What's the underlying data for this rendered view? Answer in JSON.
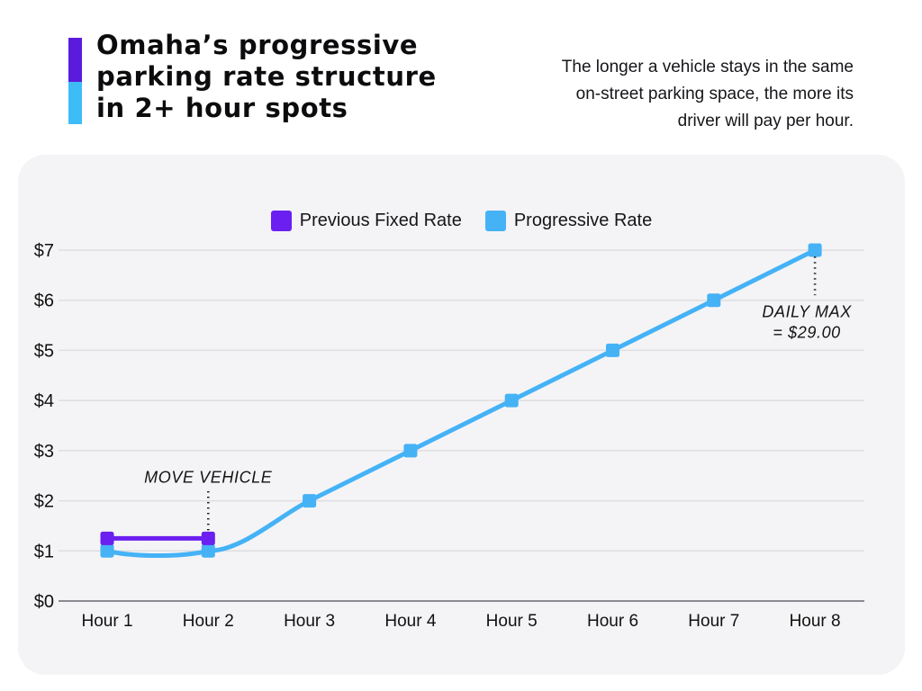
{
  "header": {
    "title_lines": [
      "Omaha’s progressive",
      "parking rate structure",
      "in 2+ hour spots"
    ],
    "subtitle_lines": [
      "The longer a vehicle stays in the same",
      "on-street parking space, the more its",
      "driver will pay per hour."
    ],
    "accent_colors": {
      "top": "#5A1BDE",
      "bottom": "#3EBCF7"
    }
  },
  "legend": [
    {
      "label": "Previous Fixed Rate",
      "color": "#6B1FF0"
    },
    {
      "label": "Progressive Rate",
      "color": "#45B2F6"
    }
  ],
  "chart_data": {
    "type": "line",
    "categories": [
      "Hour 1",
      "Hour 2",
      "Hour 3",
      "Hour 4",
      "Hour 5",
      "Hour 6",
      "Hour 7",
      "Hour 8"
    ],
    "yticks": [
      "$0",
      "$1",
      "$2",
      "$3",
      "$4",
      "$5",
      "$6",
      "$7"
    ],
    "ylim": [
      0,
      7
    ],
    "grid": "horizontal",
    "legend_position": "top-center",
    "series": [
      {
        "name": "Progressive Rate",
        "color": "#45B2F6",
        "curved": true,
        "hours": [
          1,
          2,
          3,
          4,
          5,
          6,
          7,
          8
        ],
        "values": [
          1,
          1,
          2,
          3,
          4,
          5,
          6,
          7
        ]
      },
      {
        "name": "Previous Fixed Rate",
        "color": "#6B1FF0",
        "curved": false,
        "hours": [
          1,
          2
        ],
        "values": [
          1.25,
          1.25
        ]
      }
    ],
    "annotations": [
      {
        "text_lines": [
          "MOVE VEHICLE"
        ],
        "anchor": [
          2,
          2.36
        ],
        "line_at_hour": 2,
        "line_span": [
          2.19,
          1.37
        ]
      },
      {
        "text_lines": [
          "DAILY MAX",
          "= $29.00"
        ],
        "anchor": [
          7.92,
          5.66
        ],
        "line_at_hour": 8,
        "line_span": [
          6.87,
          6.1
        ]
      }
    ]
  },
  "colors": {
    "panel_bg": "#F4F4F6",
    "grid": "#DEDEE2",
    "axis": "#8A8A90",
    "annotation": "#1a1a1a"
  }
}
